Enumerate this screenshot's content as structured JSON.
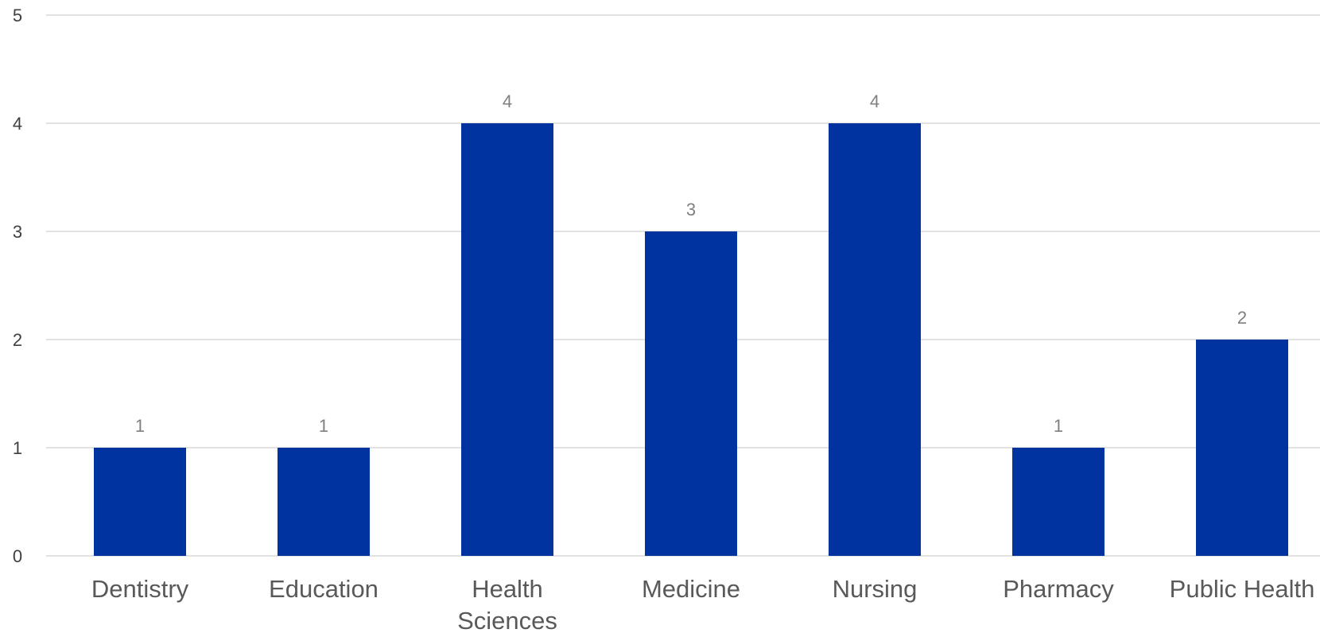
{
  "chart_data": {
    "type": "bar",
    "title": "",
    "xlabel": "",
    "ylabel": "",
    "categories": [
      "Dentistry",
      "Education",
      "Health Sciences",
      "Medicine",
      "Nursing",
      "Pharmacy",
      "Public Health"
    ],
    "category_lines": [
      [
        "Dentistry"
      ],
      [
        "Education"
      ],
      [
        "Health",
        "Sciences"
      ],
      [
        "Medicine"
      ],
      [
        "Nursing"
      ],
      [
        "Pharmacy"
      ],
      [
        "Public Health"
      ]
    ],
    "values": [
      1,
      1,
      4,
      3,
      4,
      1,
      2
    ],
    "ylim": [
      0,
      5
    ],
    "yticks": [
      0,
      1,
      2,
      3,
      4,
      5
    ],
    "grid": true,
    "legend": "none",
    "data_labels": true,
    "bar_color": "#0033a0"
  }
}
